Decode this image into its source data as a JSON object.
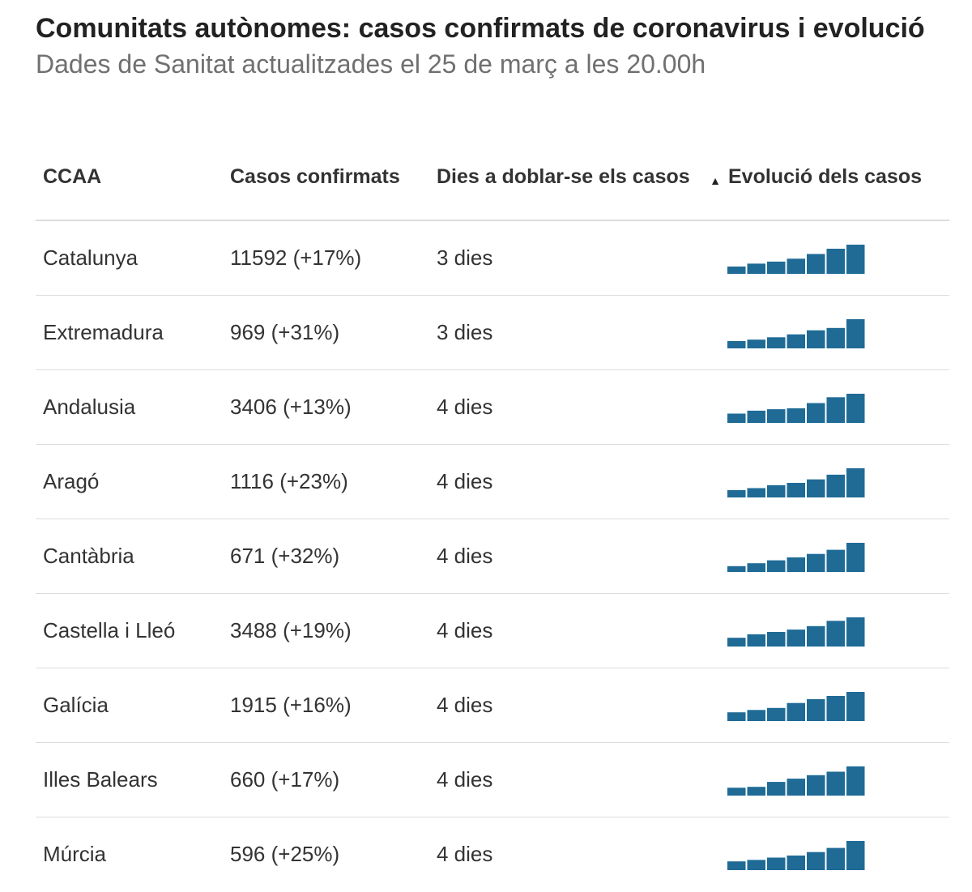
{
  "header": {
    "title": "Comunitats autònomes: casos confirmats de coronavirus i evolució",
    "subtitle": "Dades de Sanitat actualitzades el 25 de març a les 20.00h"
  },
  "table": {
    "columns": [
      "CCAA",
      "Casos confirmats",
      "Dies a doblar-se els casos",
      "Evolució dels casos"
    ],
    "sort_indicator": "▲",
    "rows": [
      {
        "ccaa": "Catalunya",
        "cases": "11592 (+17%)",
        "days": "3 dies",
        "evolution": [
          0.25,
          0.35,
          0.42,
          0.52,
          0.68,
          0.86,
          1.0
        ]
      },
      {
        "ccaa": "Extremadura",
        "cases": "969 (+31%)",
        "days": "3 dies",
        "evolution": [
          0.25,
          0.3,
          0.38,
          0.48,
          0.62,
          0.7,
          1.0
        ]
      },
      {
        "ccaa": "Andalusia",
        "cases": "3406 (+13%)",
        "days": "4 dies",
        "evolution": [
          0.32,
          0.42,
          0.47,
          0.5,
          0.68,
          0.88,
          1.0
        ]
      },
      {
        "ccaa": "Aragó",
        "cases": "1116 (+23%)",
        "days": "4 dies",
        "evolution": [
          0.25,
          0.32,
          0.42,
          0.5,
          0.62,
          0.78,
          1.0
        ]
      },
      {
        "ccaa": "Cantàbria",
        "cases": "671 (+32%)",
        "days": "4 dies",
        "evolution": [
          0.2,
          0.3,
          0.4,
          0.5,
          0.62,
          0.76,
          1.0
        ]
      },
      {
        "ccaa": "Castella i Lleó",
        "cases": "3488 (+19%)",
        "days": "4 dies",
        "evolution": [
          0.3,
          0.42,
          0.5,
          0.58,
          0.7,
          0.88,
          1.0
        ]
      },
      {
        "ccaa": "Galícia",
        "cases": "1915 (+16%)",
        "days": "4 dies",
        "evolution": [
          0.3,
          0.38,
          0.45,
          0.62,
          0.75,
          0.86,
          1.0
        ]
      },
      {
        "ccaa": "Illes Balears",
        "cases": "660 (+17%)",
        "days": "4 dies",
        "evolution": [
          0.27,
          0.3,
          0.47,
          0.58,
          0.7,
          0.82,
          1.0
        ]
      },
      {
        "ccaa": "Múrcia",
        "cases": "596 (+25%)",
        "days": "4 dies",
        "evolution": [
          0.3,
          0.35,
          0.43,
          0.5,
          0.62,
          0.76,
          1.0
        ]
      }
    ]
  },
  "colors": {
    "bar": "#1f6b96"
  },
  "chart_data": {
    "type": "table",
    "columns": [
      "CCAA",
      "Casos confirmats",
      "Dies a doblar-se els casos",
      "Evolució dels casos"
    ],
    "rows": [
      [
        "Catalunya",
        "11592 (+17%)",
        "3 dies"
      ],
      [
        "Extremadura",
        "969 (+31%)",
        "3 dies"
      ],
      [
        "Andalusia",
        "3406 (+13%)",
        "4 dies"
      ],
      [
        "Aragó",
        "1116 (+23%)",
        "4 dies"
      ],
      [
        "Cantàbria",
        "671 (+32%)",
        "4 dies"
      ],
      [
        "Castella i Lleó",
        "3488 (+19%)",
        "4 dies"
      ],
      [
        "Galícia",
        "1915 (+16%)",
        "4 dies"
      ],
      [
        "Illes Balears",
        "660 (+17%)",
        "4 dies"
      ],
      [
        "Múrcia",
        "596 (+25%)",
        "4 dies"
      ]
    ]
  }
}
